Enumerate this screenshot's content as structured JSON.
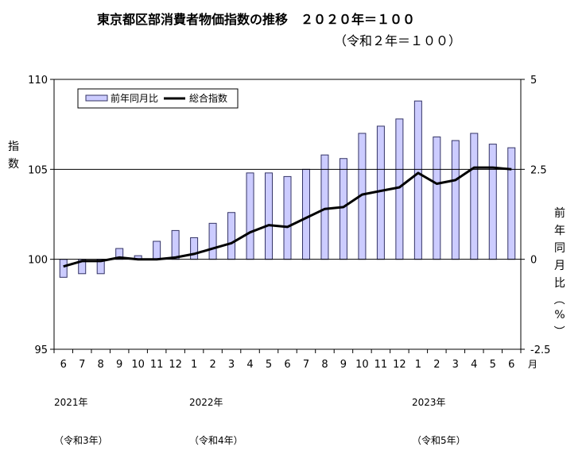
{
  "title": "東京都区部消費者物価指数の推移　２０２０年＝１００",
  "subtitle": "（令和２年＝１００）",
  "chart_data": {
    "type": "bar",
    "categories": [
      "6",
      "7",
      "8",
      "9",
      "10",
      "11",
      "12",
      "1",
      "2",
      "3",
      "4",
      "5",
      "6",
      "7",
      "8",
      "9",
      "10",
      "11",
      "12",
      "1",
      "2",
      "3",
      "4",
      "5",
      "6"
    ],
    "month_unit_label": "月",
    "series": [
      {
        "name": "前年同月比",
        "kind": "bar",
        "axis": "right",
        "color": "#ccccff",
        "values": [
          -0.5,
          -0.4,
          -0.4,
          0.3,
          0.1,
          0.5,
          0.8,
          0.6,
          1.0,
          1.3,
          2.4,
          2.4,
          2.3,
          2.5,
          2.9,
          2.8,
          3.5,
          3.7,
          3.9,
          4.4,
          3.4,
          3.3,
          3.5,
          3.2,
          3.1
        ]
      },
      {
        "name": "総合指数",
        "kind": "line",
        "axis": "left",
        "color": "#000000",
        "values": [
          99.6,
          99.9,
          99.9,
          100.1,
          100.0,
          100.0,
          100.1,
          100.3,
          100.6,
          100.9,
          101.5,
          101.9,
          101.8,
          102.3,
          102.8,
          102.9,
          103.6,
          103.8,
          104.0,
          104.8,
          104.2,
          104.4,
          105.1,
          105.1,
          105.0
        ]
      }
    ],
    "left_axis": {
      "label": "指数",
      "ylim": [
        95,
        110
      ],
      "ticks": [
        "95",
        "100",
        "105",
        "110"
      ]
    },
    "right_axis": {
      "label": "前年同月比（%）",
      "ylim": [
        -2.5,
        5
      ],
      "ticks": [
        "-2.5",
        "0",
        "2.5",
        "5"
      ]
    },
    "year_labels": [
      {
        "year": "2021年",
        "era": "（令和3年）"
      },
      {
        "year": "2022年",
        "era": "（令和4年）"
      },
      {
        "year": "2023年",
        "era": "（令和5年）"
      }
    ],
    "reference_lines": [
      100,
      105
    ],
    "legend_position": "top-left",
    "grid": false
  }
}
